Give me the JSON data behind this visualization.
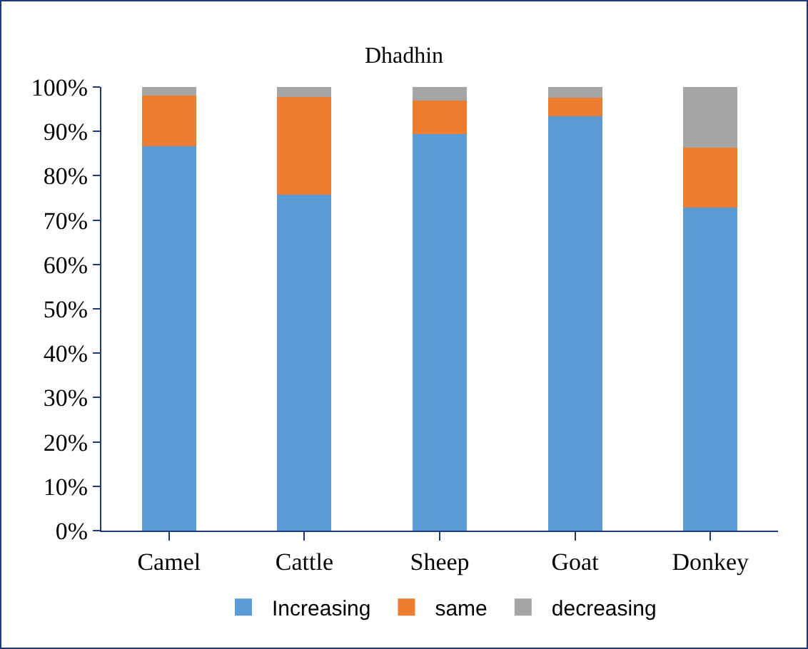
{
  "chart_data": {
    "type": "bar",
    "title": "Dhadhin",
    "stacked": true,
    "categories": [
      "Camel",
      "Cattle",
      "Sheep",
      "Goat",
      "Donkey"
    ],
    "series": [
      {
        "name": "Increasing",
        "color": "#5b9bd5",
        "values": [
          86.7,
          75.8,
          89.4,
          93.4,
          72.9
        ]
      },
      {
        "name": "same",
        "color": "#ed7d31",
        "values": [
          11.4,
          22.0,
          7.6,
          4.2,
          13.4
        ]
      },
      {
        "name": "decreasing",
        "color": "#a5a5a5",
        "values": [
          1.9,
          2.2,
          3.0,
          2.4,
          13.7
        ]
      }
    ],
    "ylim": [
      0,
      100
    ],
    "yticks": [
      {
        "value": 0,
        "label": "0%"
      },
      {
        "value": 10,
        "label": "10%"
      },
      {
        "value": 20,
        "label": "20%"
      },
      {
        "value": 30,
        "label": "30%"
      },
      {
        "value": 40,
        "label": "40%"
      },
      {
        "value": 50,
        "label": "50%"
      },
      {
        "value": 60,
        "label": "60%"
      },
      {
        "value": 70,
        "label": "70%"
      },
      {
        "value": 80,
        "label": "80%"
      },
      {
        "value": 90,
        "label": "90%"
      },
      {
        "value": 100,
        "label": "100%"
      }
    ],
    "grid": false,
    "legend": "bottom"
  }
}
